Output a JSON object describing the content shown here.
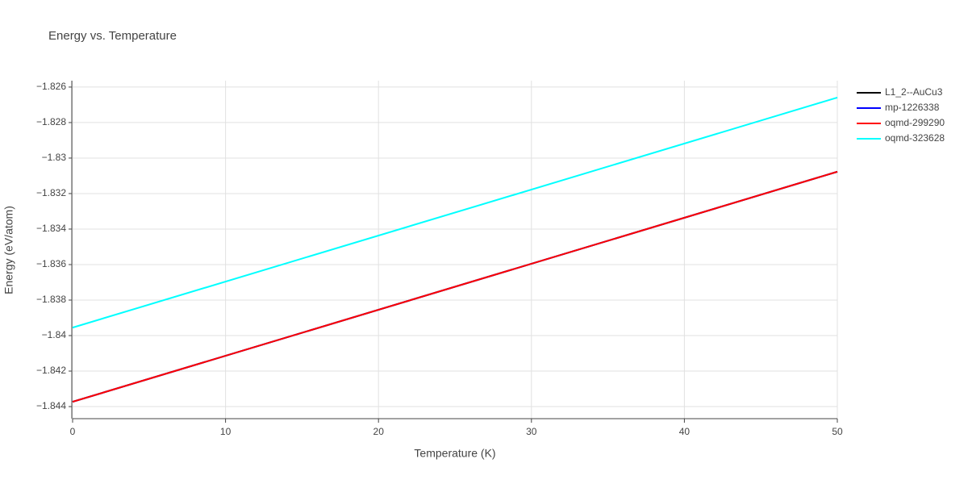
{
  "chart_data": {
    "type": "line",
    "title": "Energy vs. Temperature",
    "x_label": "Temperature (K)",
    "y_label": "Energy (eV/atom)",
    "x": [
      0,
      50
    ],
    "series": [
      {
        "name": "L1_2--AuCu3",
        "color": "#000000",
        "values": [
          -1.84373,
          -1.83077
        ]
      },
      {
        "name": "mp-1226338",
        "color": "#0000ff",
        "values": [
          -1.84373,
          -1.83077
        ]
      },
      {
        "name": "oqmd-299290",
        "color": "#ff0000",
        "values": [
          -1.84373,
          -1.83077
        ]
      },
      {
        "name": "oqmd-323628",
        "color": "#00ffff",
        "values": [
          -1.83955,
          -1.82659
        ]
      }
    ],
    "xlim": [
      0,
      50
    ],
    "xticks": [
      0,
      10,
      20,
      30,
      40,
      50
    ],
    "ylim": [
      -1.84468,
      -1.82564
    ],
    "yticks": [
      {
        "value": -1.844,
        "label": "−1.844"
      },
      {
        "value": -1.842,
        "label": "−1.842"
      },
      {
        "value": -1.84,
        "label": "−1.84"
      },
      {
        "value": -1.838,
        "label": "−1.838"
      },
      {
        "value": -1.836,
        "label": "−1.836"
      },
      {
        "value": -1.834,
        "label": "−1.834"
      },
      {
        "value": -1.832,
        "label": "−1.832"
      },
      {
        "value": -1.83,
        "label": "−1.83"
      },
      {
        "value": -1.828,
        "label": "−1.828"
      },
      {
        "value": -1.826,
        "label": "−1.826"
      }
    ],
    "grid": true,
    "legend": "top-right"
  }
}
